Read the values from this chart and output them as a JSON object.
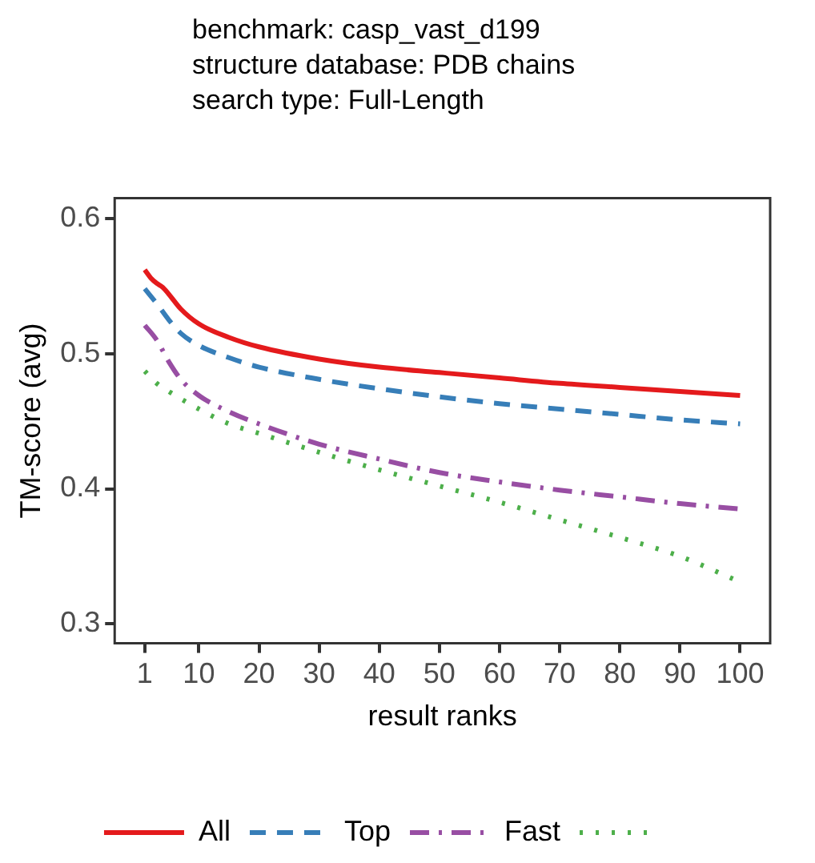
{
  "chart_data": {
    "type": "line",
    "title": "benchmark: casp_vast_d199\nstructure database: PDB chains\nsearch type: Full-Length",
    "xlabel": "result ranks",
    "ylabel": "TM-score (avg)",
    "xlim": [
      -4,
      105
    ],
    "xticks": [
      1,
      10,
      20,
      30,
      40,
      50,
      60,
      70,
      80,
      90,
      100
    ],
    "ylim": [
      0.2856,
      0.615
    ],
    "yticks": [
      0.3,
      0.4,
      0.5,
      0.6
    ],
    "grid": false,
    "legend": "bottom",
    "marker": "none",
    "series": [
      {
        "name": "All",
        "color": "#e41a1c",
        "line_style": "solid",
        "x": [
          1,
          2,
          3,
          4,
          5,
          7,
          10,
          15,
          20,
          30,
          40,
          50,
          60,
          70,
          80,
          90,
          100
        ],
        "values": [
          0.562,
          0.556,
          0.552,
          0.549,
          0.544,
          0.533,
          0.522,
          0.512,
          0.505,
          0.496,
          0.49,
          0.486,
          0.482,
          0.478,
          0.475,
          0.472,
          0.469
        ]
      },
      {
        "name": "Top",
        "color": "#377eb8",
        "line_style": "dashed",
        "x": [
          1,
          3,
          5,
          7,
          10,
          15,
          20,
          30,
          40,
          50,
          60,
          70,
          80,
          90,
          100
        ],
        "values": [
          0.548,
          0.537,
          0.525,
          0.515,
          0.506,
          0.497,
          0.49,
          0.481,
          0.474,
          0.468,
          0.463,
          0.459,
          0.455,
          0.451,
          0.448
        ]
      },
      {
        "name": "Fast",
        "color": "#984ea3",
        "line_style": "dashdot",
        "x": [
          1,
          3,
          5,
          7,
          10,
          15,
          20,
          30,
          40,
          50,
          60,
          70,
          80,
          90,
          100
        ],
        "values": [
          0.521,
          0.51,
          0.494,
          0.481,
          0.469,
          0.457,
          0.448,
          0.433,
          0.422,
          0.412,
          0.405,
          0.399,
          0.394,
          0.389,
          0.385
        ]
      },
      {
        "color": "#4daf4a",
        "line_style": "dotted",
        "x": [
          1,
          3,
          5,
          10,
          15,
          20,
          30,
          40,
          50,
          60,
          70,
          80,
          90,
          100
        ],
        "values": [
          0.487,
          0.478,
          0.472,
          0.459,
          0.448,
          0.441,
          0.427,
          0.414,
          0.402,
          0.39,
          0.377,
          0.364,
          0.35,
          0.331
        ]
      }
    ]
  }
}
